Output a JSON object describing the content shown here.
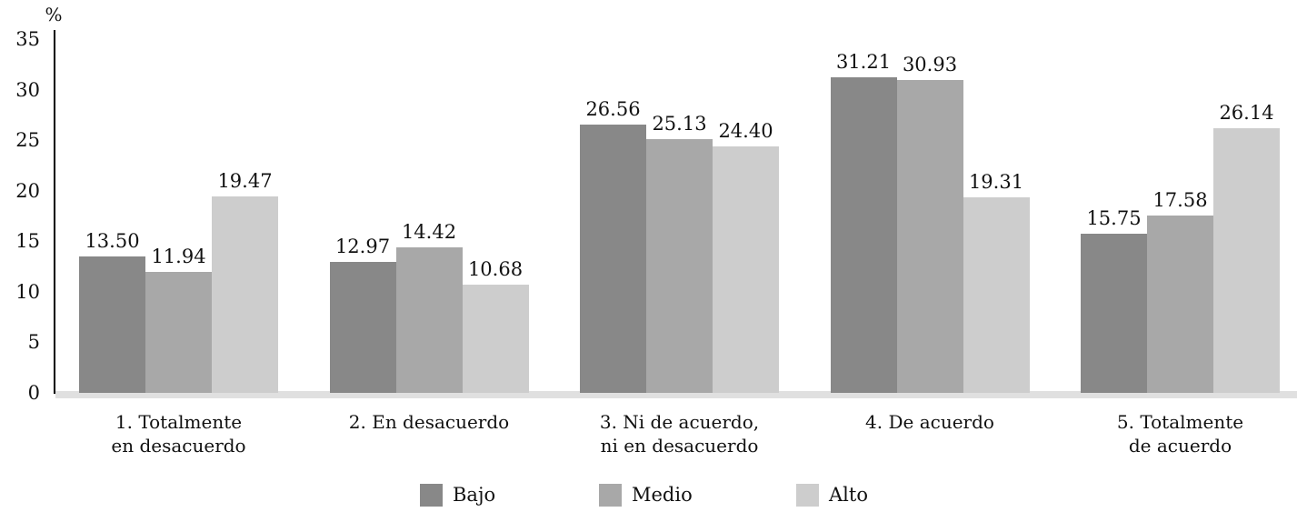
{
  "chart_data": {
    "type": "bar",
    "title": "",
    "xlabel": "",
    "ylabel": "%",
    "ylim": [
      0,
      35
    ],
    "yticks": [
      0,
      5,
      10,
      15,
      20,
      25,
      30,
      35
    ],
    "grid": false,
    "legend_position": "bottom",
    "value_label_decimals": 2,
    "categories": [
      "1. Totalmente\nen desacuerdo",
      "2. En desacuerdo",
      "3. Ni de acuerdo,\nni en desacuerdo",
      "4. De acuerdo",
      "5. Totalmente\nde acuerdo"
    ],
    "series": [
      {
        "name": "Bajo",
        "color": "#888888",
        "values": [
          13.5,
          12.97,
          26.56,
          31.21,
          15.75
        ]
      },
      {
        "name": "Medio",
        "color": "#a8a8a8",
        "values": [
          11.94,
          14.42,
          25.13,
          30.93,
          17.58
        ]
      },
      {
        "name": "Alto",
        "color": "#cdcdcd",
        "values": [
          19.47,
          10.68,
          24.4,
          19.31,
          26.14
        ]
      }
    ],
    "colors": {
      "axis": "#000000",
      "text": "#111111",
      "baseline_strip": "#e0e0e0"
    }
  }
}
